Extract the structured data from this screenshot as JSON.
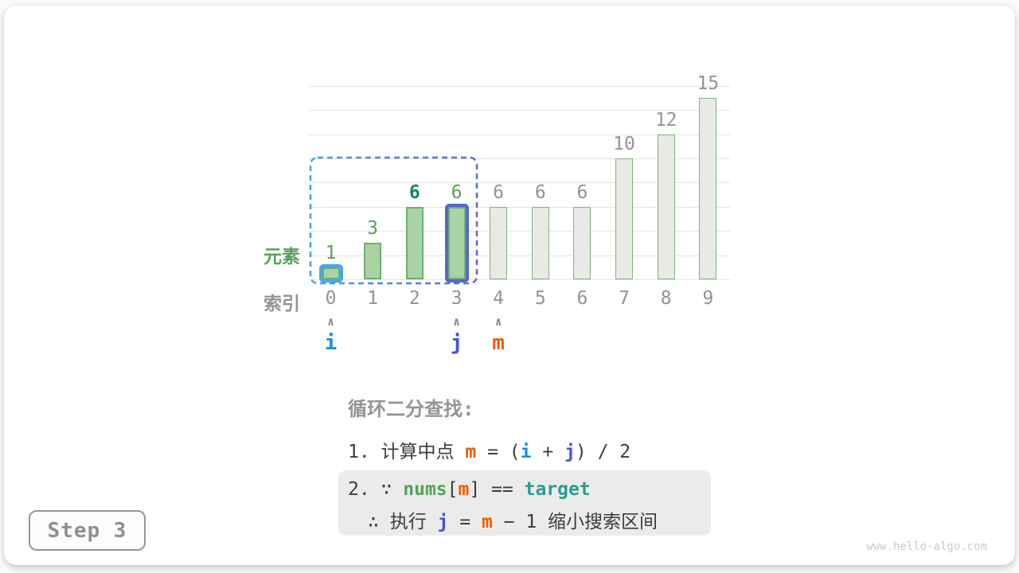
{
  "colors": {
    "dark": "#3c3c3c",
    "gray": "#949494",
    "gray_light": "#cbcbcb",
    "green": "#58a05a",
    "green_fill": "#a9d3a4",
    "green_stroke": "#6fae6e",
    "gray_fill": "#e9e9e6",
    "gray_stroke": "#7cb57c",
    "blue": "#1d8fd8",
    "blue_ring": "#44a9e6",
    "indigo": "#4353d9",
    "indigo_ring": "#5468d0",
    "orange": "#ee5c09",
    "teal": "#2a9d8f",
    "teal_dark": "#158073",
    "grid": "#e4e4e2",
    "box_bg": "#ebebeb",
    "badge_border": "#969696",
    "dashed_start": "#42a4e8",
    "dashed_end": "#5b6ada"
  },
  "chart": {
    "element_axis_label": "元素",
    "index_axis_label": "索引",
    "caret_glyph": "∧",
    "gridline_values": [
      0,
      2,
      4,
      6,
      8,
      10,
      12,
      14,
      16
    ],
    "bars": [
      {
        "index": 0,
        "value": 1,
        "state": "active",
        "ring": "i",
        "label_style": "green"
      },
      {
        "index": 1,
        "value": 3,
        "state": "active",
        "ring": null,
        "label_style": "green"
      },
      {
        "index": 2,
        "value": 6,
        "state": "active",
        "ring": null,
        "label_style": "teal-bold"
      },
      {
        "index": 3,
        "value": 6,
        "state": "active",
        "ring": "j",
        "label_style": "green"
      },
      {
        "index": 4,
        "value": 6,
        "state": "inactive",
        "ring": null,
        "label_style": "gray"
      },
      {
        "index": 5,
        "value": 6,
        "state": "inactive",
        "ring": null,
        "label_style": "gray"
      },
      {
        "index": 6,
        "value": 6,
        "state": "inactive",
        "ring": null,
        "label_style": "gray"
      },
      {
        "index": 7,
        "value": 10,
        "state": "inactive",
        "ring": null,
        "label_style": "gray"
      },
      {
        "index": 8,
        "value": 12,
        "state": "inactive",
        "ring": null,
        "label_style": "gray"
      },
      {
        "index": 9,
        "value": 15,
        "state": "inactive",
        "ring": null,
        "label_style": "gray"
      }
    ],
    "search_range": {
      "from_index": 0,
      "to_index": 3
    },
    "pointers": [
      {
        "label": "i",
        "index": 0,
        "color": "blue"
      },
      {
        "label": "j",
        "index": 3,
        "color": "indigo"
      },
      {
        "label": "m",
        "index": 4,
        "color": "orange"
      }
    ]
  },
  "chart_data": {
    "type": "bar",
    "categories": [
      0,
      1,
      2,
      3,
      4,
      5,
      6,
      7,
      8,
      9
    ],
    "values": [
      1,
      3,
      6,
      6,
      6,
      6,
      6,
      10,
      12,
      15
    ],
    "title": "",
    "xlabel": "索引",
    "ylabel": "元素",
    "ylim": [
      0,
      16
    ],
    "grid": true,
    "highlighted_range_indices": [
      0,
      3
    ],
    "target_value": 6
  },
  "explanation": {
    "title": "循环二分查找:",
    "line1": [
      {
        "t": "1. 计算中点 ",
        "c": "dark"
      },
      {
        "t": "m",
        "c": "orange"
      },
      {
        "t": " = (",
        "c": "dark"
      },
      {
        "t": "i",
        "c": "blue"
      },
      {
        "t": " + ",
        "c": "dark"
      },
      {
        "t": "j",
        "c": "indigo"
      },
      {
        "t": ") / 2",
        "c": "dark"
      }
    ],
    "box_line1": [
      {
        "t": "2. ∵ ",
        "c": "dark"
      },
      {
        "t": "nums",
        "c": "green"
      },
      {
        "t": "[",
        "c": "dark"
      },
      {
        "t": "m",
        "c": "orange"
      },
      {
        "t": "] == ",
        "c": "dark"
      },
      {
        "t": "target",
        "c": "teal"
      }
    ],
    "box_line2": [
      {
        "t": "∴ 执行 ",
        "c": "dark"
      },
      {
        "t": "j",
        "c": "indigo"
      },
      {
        "t": " = ",
        "c": "dark"
      },
      {
        "t": "m",
        "c": "orange"
      },
      {
        "t": " − 1 缩小搜索区间",
        "c": "dark"
      }
    ]
  },
  "step_badge": "Step 3",
  "watermark": "www.hello-algo.com"
}
